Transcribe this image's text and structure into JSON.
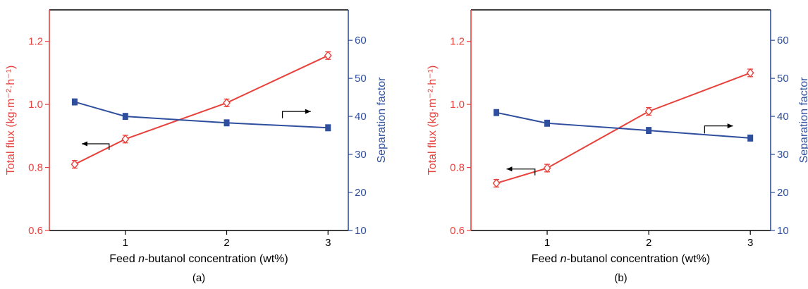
{
  "colors": {
    "flux": "#e8413c",
    "separation": "#2f4f9e",
    "axis": "#000000"
  },
  "chart_data": [
    {
      "panel_label": "(a)",
      "type": "line",
      "xlabel_prefix": "Feed ",
      "xlabel_italic": "n",
      "xlabel_suffix": "-butanol concentration (wt%)",
      "y_left_label": "Total flux (kg·m⁻²·h⁻¹)",
      "y_right_label": "Separation factor",
      "xlim": [
        0.25,
        3.2
      ],
      "ylim_left": [
        0.6,
        1.3
      ],
      "ylim_right": [
        10,
        68
      ],
      "x_ticks": [
        1,
        2,
        3
      ],
      "y_left_ticks": [
        0.6,
        0.8,
        1.0,
        1.2
      ],
      "y_left_tick_labels": [
        "0.6",
        "0.8",
        "1.0",
        "1.2"
      ],
      "y_right_ticks": [
        10,
        20,
        30,
        40,
        50,
        60
      ],
      "series": [
        {
          "axis": "left",
          "marker": "diamond-open",
          "x": [
            0.5,
            1,
            2,
            3
          ],
          "values": [
            0.81,
            0.89,
            1.005,
            1.155
          ],
          "error": [
            0.012,
            0.012,
            0.012,
            0.012
          ]
        },
        {
          "axis": "right",
          "marker": "square-filled",
          "x": [
            0.5,
            1,
            2,
            3
          ],
          "values": [
            43.8,
            40.0,
            38.3,
            37.0
          ],
          "error": [
            0.8,
            0.8,
            0.8,
            0.8
          ]
        }
      ],
      "arrows": [
        {
          "direction": "left",
          "series_axis": "left",
          "from": [
            0.84,
            0.855
          ],
          "corner": [
            0.84,
            0.875
          ],
          "to": [
            0.57,
            0.875
          ]
        },
        {
          "direction": "right",
          "series_axis": "right",
          "from": [
            2.55,
            39.5
          ],
          "corner": [
            2.55,
            41.3
          ],
          "to": [
            2.83,
            41.3
          ]
        }
      ]
    },
    {
      "panel_label": "(b)",
      "type": "line",
      "xlabel_prefix": "Feed ",
      "xlabel_italic": "n",
      "xlabel_suffix": "-butanol concentration (wt%)",
      "y_left_label": "Total flux (kg·m⁻²·h⁻¹)",
      "y_right_label": "Separation factor",
      "xlim": [
        0.25,
        3.2
      ],
      "ylim_left": [
        0.6,
        1.3
      ],
      "ylim_right": [
        10,
        68
      ],
      "x_ticks": [
        1,
        2,
        3
      ],
      "y_left_ticks": [
        0.6,
        0.8,
        1.0,
        1.2
      ],
      "y_left_tick_labels": [
        "0.6",
        "0.8",
        "1.0",
        "1.2"
      ],
      "y_right_ticks": [
        10,
        20,
        30,
        40,
        50,
        60
      ],
      "series": [
        {
          "axis": "left",
          "marker": "diamond-open",
          "x": [
            0.5,
            1,
            2,
            3
          ],
          "values": [
            0.75,
            0.798,
            0.978,
            1.1
          ],
          "error": [
            0.012,
            0.012,
            0.012,
            0.012
          ]
        },
        {
          "axis": "right",
          "marker": "square-filled",
          "x": [
            0.5,
            1,
            2,
            3
          ],
          "values": [
            41.0,
            38.2,
            36.3,
            34.3
          ],
          "error": [
            0.8,
            0.8,
            0.8,
            0.8
          ]
        }
      ],
      "arrows": [
        {
          "direction": "left",
          "series_axis": "left",
          "from": [
            0.88,
            0.775
          ],
          "corner": [
            0.88,
            0.795
          ],
          "to": [
            0.6,
            0.795
          ]
        },
        {
          "direction": "right",
          "series_axis": "right",
          "from": [
            2.55,
            35.5
          ],
          "corner": [
            2.55,
            37.5
          ],
          "to": [
            2.83,
            37.5
          ]
        }
      ]
    }
  ]
}
